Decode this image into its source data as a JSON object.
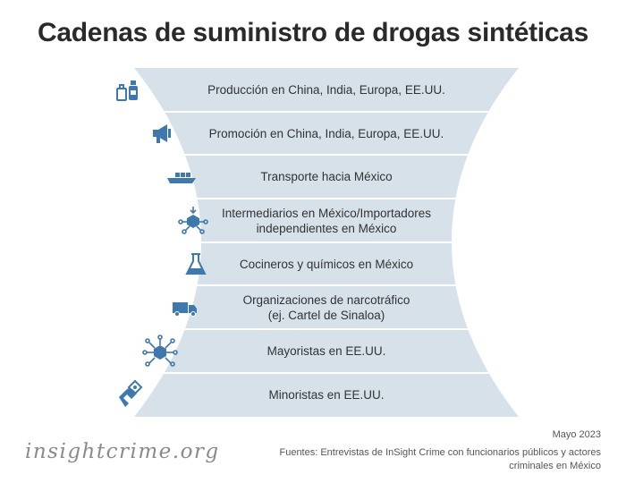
{
  "title": "Cadenas de suministro de drogas sintéticas",
  "colors": {
    "band": "#d6e1ea",
    "divider": "#ffffff",
    "icon": "#3f78ad",
    "title": "#2a2a2a"
  },
  "stages": [
    {
      "label": "Producción en China, India, Europa, EE.UU.",
      "icon": "bottles-icon"
    },
    {
      "label": "Promoción en China, India, Europa, EE.UU.",
      "icon": "megaphone-icon"
    },
    {
      "label": "Transporte hacia México",
      "icon": "cargo-ship-icon"
    },
    {
      "label": "Intermediarios en México/Importadores\nindependientes en México",
      "icon": "network-box-icon"
    },
    {
      "label": "Cocineros y químicos en México",
      "icon": "flask-icon"
    },
    {
      "label": "Organizaciones de narcotráfico\n(ej. Cartel de Sinaloa)",
      "icon": "truck-icon"
    },
    {
      "label": "Mayoristas en EE.UU.",
      "icon": "distribution-network-icon"
    },
    {
      "label": "Minoristas en EE.UU.",
      "icon": "hand-exchange-icon"
    }
  ],
  "footer": {
    "brand": "insightcrime.org",
    "date": "Mayo 2023",
    "sources": "Fuentes: Entrevistas de InSight Crime con funcionarios públicos y actores criminales en México"
  }
}
